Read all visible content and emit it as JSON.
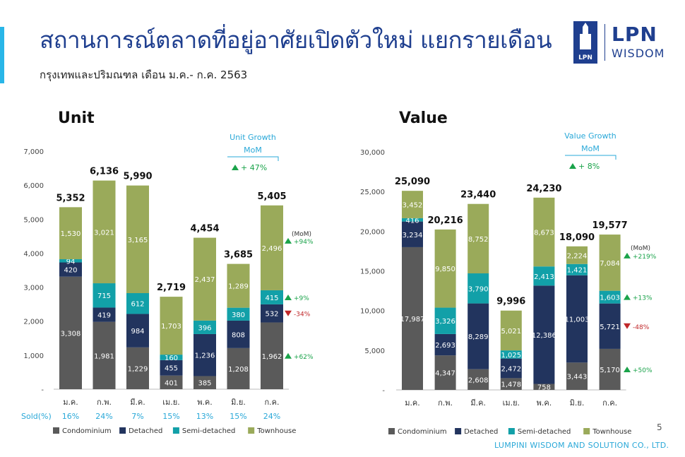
{
  "header": {
    "title": "สถานการณ์ตลาดที่อยู่อาศัยเปิดตัวใหม่ แยกรายเดือน",
    "subtitle": "กรุงเทพและปริมณฑล เดือน ม.ค.- ก.ค. 2563"
  },
  "logo": {
    "line1": "LPN",
    "line2": "WISDOM",
    "badge": "LPN"
  },
  "page_number": "5",
  "footer": "LUMPINI WISDOM AND SOLUTION CO., LTD.",
  "colors": {
    "condominium": "#5a5a5a",
    "detached": "#22345e",
    "semi_detached": "#12a0a8",
    "townhouse": "#9aaa5a",
    "up": "#1aa34a",
    "down": "#c0282a",
    "accent": "#29a8d8"
  },
  "chart_data": [
    {
      "type": "bar",
      "stacked": true,
      "title": "Unit",
      "categories": [
        "ม.ค.",
        "ก.พ.",
        "มี.ค.",
        "เม.ย.",
        "พ.ค.",
        "มิ.ย.",
        "ก.ค."
      ],
      "ylim": [
        0,
        7000
      ],
      "yticks": [
        "-",
        "1,000",
        "2,000",
        "3,000",
        "4,000",
        "5,000",
        "6,000",
        "7,000"
      ],
      "series": [
        {
          "name": "Condominium",
          "values": [
            3308,
            1981,
            1229,
            401,
            385,
            1208,
            1962
          ],
          "labels": [
            "3,308",
            "1,981",
            "1,229",
            "401",
            "385",
            "1,208",
            "1,962"
          ]
        },
        {
          "name": "Detached",
          "values": [
            420,
            419,
            984,
            455,
            1236,
            808,
            532
          ],
          "labels": [
            "420",
            "419",
            "984",
            "455",
            "1,236",
            "808",
            "532"
          ]
        },
        {
          "name": "Semi-detached",
          "values": [
            94,
            715,
            612,
            160,
            396,
            380,
            415
          ],
          "labels": [
            "94",
            "715",
            "612",
            "160",
            "396",
            "380",
            "415"
          ]
        },
        {
          "name": "Townhouse",
          "values": [
            1530,
            3021,
            3165,
            1703,
            2437,
            1289,
            2496
          ],
          "labels": [
            "1,530",
            "3,021",
            "3,165",
            "1,703",
            "2,437",
            "1,289",
            "2,496"
          ]
        }
      ],
      "totals": [
        "5,352",
        "6,136",
        "5,990",
        "2,719",
        "4,454",
        "3,685",
        "5,405"
      ],
      "sold_label": "Sold(%)",
      "sold": [
        "16%",
        "24%",
        "7%",
        "15%",
        "13%",
        "15%",
        "24%"
      ],
      "growth_title_line1": "Unit Growth",
      "growth_title_line2": "MoM",
      "growth_total": "+ 47%",
      "mom_label": "(MoM)",
      "mom": [
        {
          "series": "Townhouse",
          "text": "+94%",
          "dir": "up"
        },
        {
          "series": "Semi-detached",
          "text": "+9%",
          "dir": "up"
        },
        {
          "series": "Detached",
          "text": "-34%",
          "dir": "down"
        },
        {
          "series": "Condominium",
          "text": "+62%",
          "dir": "up"
        }
      ],
      "legend": [
        "Condominium",
        "Detached",
        "Semi-detached",
        "Townhouse"
      ]
    },
    {
      "type": "bar",
      "stacked": true,
      "title": "Value",
      "categories": [
        "ม.ค.",
        "ก.พ.",
        "มี.ค.",
        "เม.ย.",
        "พ.ค.",
        "มิ.ย.",
        "ก.ค."
      ],
      "ylim": [
        0,
        30000
      ],
      "yticks": [
        "-",
        "5,000",
        "10,000",
        "15,000",
        "20,000",
        "25,000",
        "30,000"
      ],
      "series": [
        {
          "name": "Condominium",
          "values": [
            17987,
            4347,
            2608,
            1478,
            758,
            3443,
            5170
          ],
          "labels": [
            "17,987",
            "4,347",
            "2,608",
            "1,478",
            "758",
            "3,443",
            "5,170"
          ]
        },
        {
          "name": "Detached",
          "values": [
            3234,
            2693,
            8289,
            2472,
            12386,
            11003,
            5721
          ],
          "labels": [
            "3,234",
            "2,693",
            "8,289",
            "2,472",
            "12,386",
            "11,003",
            "5,721"
          ]
        },
        {
          "name": "Semi-detached",
          "values": [
            416,
            3326,
            3790,
            1025,
            2413,
            1421,
            1603
          ],
          "labels": [
            "416",
            "3,326",
            "3,790",
            "1,025",
            "2,413",
            "1,421",
            "1,603"
          ]
        },
        {
          "name": "Townhouse",
          "values": [
            3452,
            9850,
            8752,
            5021,
            8673,
            2224,
            7084
          ],
          "labels": [
            "3,452",
            "9,850",
            "8,752",
            "5,021",
            "8,673",
            "2,224",
            "7,084"
          ]
        }
      ],
      "totals": [
        "25,090",
        "20,216",
        "23,440",
        "9,996",
        "24,230",
        "18,090",
        "19,577"
      ],
      "growth_title_line1": "Value Growth",
      "growth_title_line2": "MoM",
      "growth_total": "+ 8%",
      "mom_label": "(MoM)",
      "mom": [
        {
          "series": "Townhouse",
          "text": "+219%",
          "dir": "up"
        },
        {
          "series": "Semi-detached",
          "text": "+13%",
          "dir": "up"
        },
        {
          "series": "Detached",
          "text": "-48%",
          "dir": "down"
        },
        {
          "series": "Condominium",
          "text": "+50%",
          "dir": "up"
        }
      ],
      "legend": [
        "Condominium",
        "Detached",
        "Semi-detached",
        "Townhouse"
      ]
    }
  ]
}
